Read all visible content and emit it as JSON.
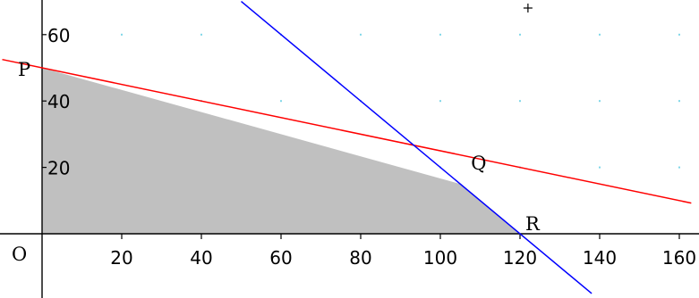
{
  "chart_data": {
    "type": "area",
    "title": "",
    "xlabel": "",
    "ylabel": "",
    "xlim": [
      -10,
      163
    ],
    "ylim": [
      -18,
      70
    ],
    "grid": "dotted",
    "x_ticks": [
      20,
      40,
      60,
      80,
      100,
      120,
      140,
      160
    ],
    "y_ticks": [
      20,
      40,
      60
    ],
    "origin_label": "O",
    "series": [
      {
        "color": "#ff0000",
        "points": [
          [
            -10,
            52.5
          ],
          [
            163,
            9.25
          ]
        ]
      },
      {
        "color": "#0000ff",
        "points": [
          [
            50,
            70
          ],
          [
            138,
            -18
          ]
        ]
      }
    ],
    "shaded_region": {
      "color": "#c0c0c0",
      "vertices": [
        [
          0,
          0
        ],
        [
          0,
          50
        ],
        [
          105,
          15
        ],
        [
          120,
          0
        ]
      ]
    },
    "points": [
      {
        "label": "P",
        "x": 0,
        "y": 50
      },
      {
        "label": "Q",
        "x": 105,
        "y": 15
      },
      {
        "label": "R",
        "x": 120,
        "y": 0
      }
    ]
  }
}
